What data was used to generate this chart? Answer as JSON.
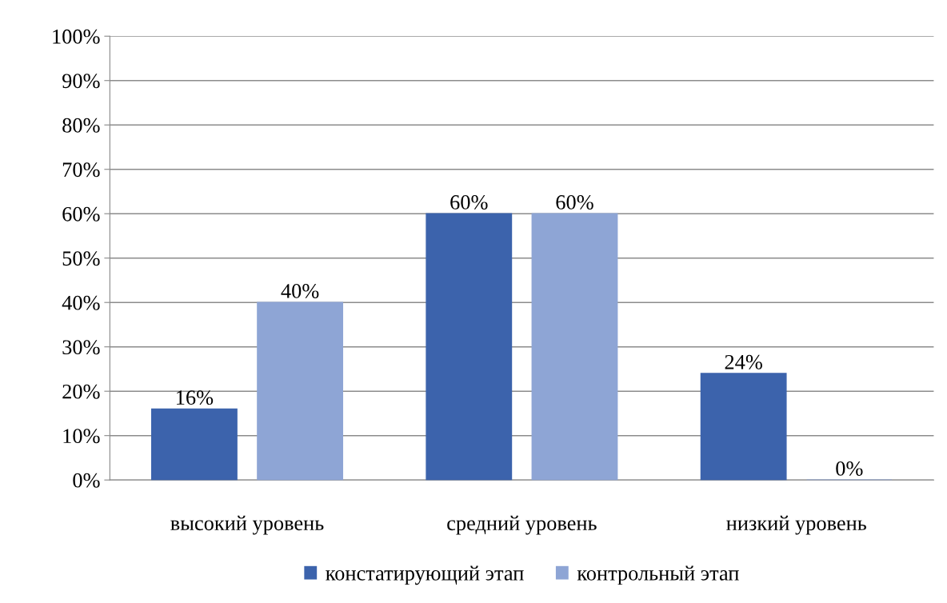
{
  "chart_data": {
    "type": "bar",
    "categories": [
      "высокий уровень",
      "средний уровень",
      "низкий уровень"
    ],
    "series": [
      {
        "name": "констатирующий этап",
        "color": "#3c63ac",
        "values": [
          16,
          60,
          24
        ],
        "value_labels": [
          "16%",
          "60%",
          "24%"
        ]
      },
      {
        "name": "контрольный этап",
        "color": "#8ea5d5",
        "values": [
          40,
          60,
          0
        ],
        "value_labels": [
          "40%",
          "60%",
          "0%"
        ]
      }
    ],
    "ylim": [
      0,
      100
    ],
    "yticks": [
      {
        "value": 0,
        "label": "0%"
      },
      {
        "value": 10,
        "label": "10%"
      },
      {
        "value": 20,
        "label": "20%"
      },
      {
        "value": 30,
        "label": "30%"
      },
      {
        "value": 40,
        "label": "40%"
      },
      {
        "value": 50,
        "label": "50%"
      },
      {
        "value": 60,
        "label": "60%"
      },
      {
        "value": 70,
        "label": "70%"
      },
      {
        "value": 80,
        "label": "80%"
      },
      {
        "value": 90,
        "label": "90%"
      },
      {
        "value": 100,
        "label": "100%"
      }
    ],
    "grid": "y",
    "legend": "bottom"
  }
}
